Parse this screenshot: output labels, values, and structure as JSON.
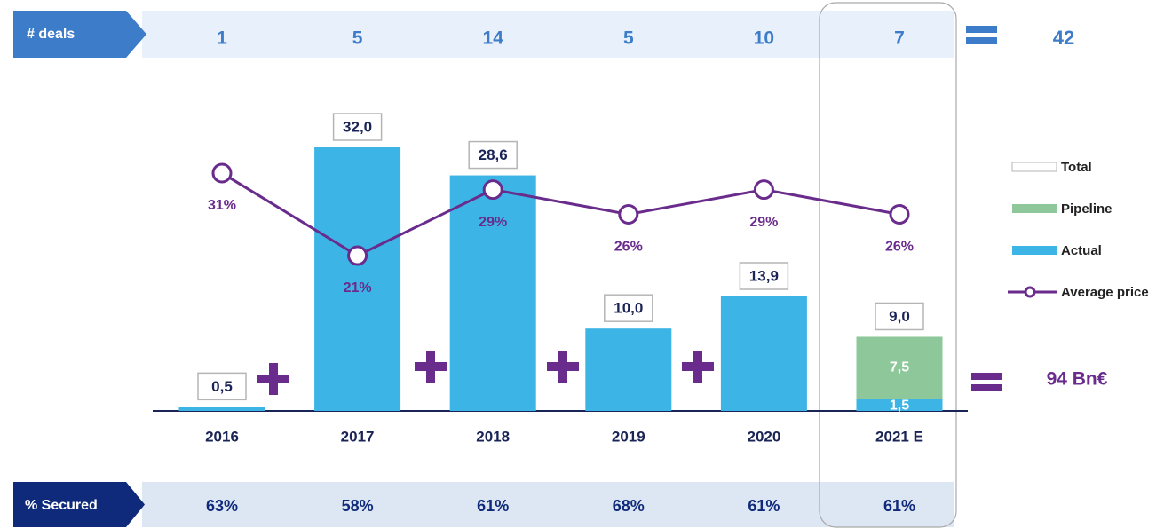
{
  "chart_data": {
    "type": "bar",
    "categories": [
      "2016",
      "2017",
      "2018",
      "2019",
      "2020",
      "2021 E"
    ],
    "series": [
      {
        "name": "Total",
        "type": "total",
        "color": "#ffffff",
        "values": [
          0.5,
          32.0,
          28.6,
          10.0,
          13.9,
          9.0
        ],
        "value_labels": [
          "0,5",
          "32,0",
          "28,6",
          "10,0",
          "13,9",
          "9,0"
        ]
      },
      {
        "name": "Pipeline",
        "type": "bar",
        "color": "#8ec89a",
        "values": [
          null,
          null,
          null,
          null,
          null,
          7.5
        ],
        "value_labels": [
          null,
          null,
          null,
          null,
          null,
          "7,5"
        ]
      },
      {
        "name": "Actual",
        "type": "bar",
        "color": "#3cb4e5",
        "values": [
          0.5,
          32.0,
          28.6,
          10.0,
          13.9,
          1.5
        ],
        "value_labels": [
          null,
          null,
          null,
          null,
          null,
          "1,5"
        ]
      },
      {
        "name": "Average price",
        "type": "line",
        "axis": "y2",
        "color": "#6a2c8c",
        "values": [
          31,
          21,
          29,
          26,
          29,
          26
        ],
        "value_labels": [
          "31%",
          "21%",
          "29%",
          "26%",
          "29%",
          "26%"
        ]
      }
    ],
    "ylim": [
      0,
      32
    ],
    "y2lim": [
      21,
      31
    ],
    "deals": {
      "label": "# deals",
      "values": [
        1,
        5,
        14,
        5,
        10,
        7
      ],
      "total": 42
    },
    "secured": {
      "label": "% Secured",
      "values": [
        63,
        58,
        61,
        68,
        61,
        61
      ],
      "value_labels": [
        "63%",
        "58%",
        "61%",
        "68%",
        "61%",
        "61%"
      ]
    },
    "total_label": "94 Bn€"
  }
}
